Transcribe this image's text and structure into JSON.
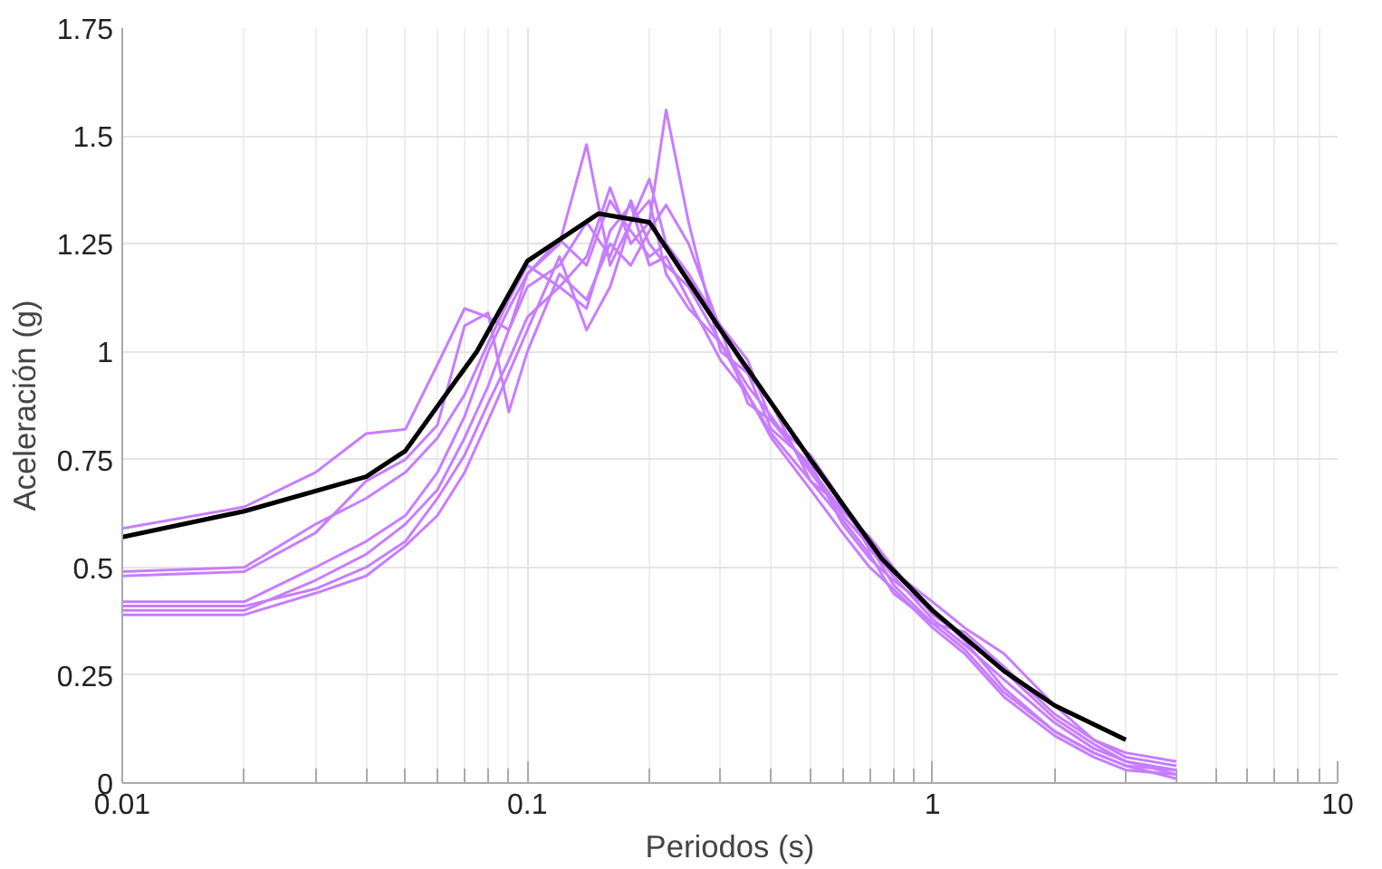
{
  "chart_data": {
    "type": "line",
    "xlabel": "Periodos (s)",
    "ylabel": "Aceleración (g)",
    "log": "x",
    "grid": true,
    "marker": "none",
    "line_style": "solid",
    "xlim": [
      0.01,
      10
    ],
    "xticks": [
      0.01,
      0.1,
      1,
      10
    ],
    "ylim": [
      0,
      1.75
    ],
    "yticks": [
      0,
      0.25,
      0.5,
      0.75,
      1,
      1.25,
      1.5,
      1.75
    ],
    "x": [
      0.01,
      0.02,
      0.03,
      0.04,
      0.05,
      0.06,
      0.07,
      0.08,
      0.09,
      0.1,
      0.12,
      0.14,
      0.16,
      0.18,
      0.2,
      0.22,
      0.25,
      0.3,
      0.35,
      0.4,
      0.5,
      0.6,
      0.7,
      0.8,
      1,
      1.2,
      1.5,
      2,
      2.5,
      3,
      4
    ],
    "series": [
      {
        "color": "#c77dff",
        "values": [
          0.4,
          0.4,
          0.47,
          0.53,
          0.6,
          0.68,
          0.8,
          0.92,
          1.05,
          1.15,
          1.2,
          1.3,
          1.22,
          1.35,
          1.25,
          1.2,
          1.15,
          1.02,
          0.92,
          0.85,
          0.72,
          0.62,
          0.55,
          0.48,
          0.38,
          0.32,
          0.24,
          0.14,
          0.08,
          0.05,
          0.02
        ]
      },
      {
        "color": "#c77dff",
        "values": [
          0.42,
          0.42,
          0.5,
          0.56,
          0.62,
          0.72,
          0.85,
          1.0,
          1.1,
          1.18,
          1.25,
          1.48,
          1.2,
          1.3,
          1.4,
          1.25,
          1.18,
          1.05,
          0.95,
          0.82,
          0.74,
          0.6,
          0.52,
          0.47,
          0.4,
          0.33,
          0.22,
          0.12,
          0.07,
          0.04,
          0.03
        ]
      },
      {
        "color": "#c77dff",
        "values": [
          0.49,
          0.5,
          0.6,
          0.66,
          0.72,
          0.8,
          0.9,
          1.02,
          1.12,
          1.2,
          1.15,
          1.22,
          1.38,
          1.25,
          1.3,
          1.56,
          1.3,
          1.0,
          0.95,
          0.88,
          0.7,
          0.64,
          0.55,
          0.46,
          0.37,
          0.35,
          0.27,
          0.16,
          0.1,
          0.06,
          0.04
        ]
      },
      {
        "color": "#c77dff",
        "values": [
          0.59,
          0.64,
          0.72,
          0.81,
          0.82,
          0.97,
          1.1,
          1.08,
          1.05,
          1.18,
          1.26,
          1.2,
          1.35,
          1.28,
          1.22,
          1.25,
          1.18,
          1.06,
          0.98,
          0.84,
          0.76,
          0.65,
          0.54,
          0.49,
          0.42,
          0.36,
          0.3,
          0.18,
          0.1,
          0.07,
          0.05
        ]
      },
      {
        "color": "#c77dff",
        "values": [
          0.41,
          0.41,
          0.45,
          0.5,
          0.56,
          0.66,
          0.76,
          0.88,
          0.98,
          1.08,
          1.15,
          1.1,
          1.28,
          1.34,
          1.2,
          1.22,
          1.12,
          0.98,
          0.9,
          0.8,
          0.68,
          0.58,
          0.5,
          0.45,
          0.36,
          0.3,
          0.2,
          0.11,
          0.06,
          0.03,
          0.02
        ]
      },
      {
        "color": "#c77dff",
        "values": [
          0.48,
          0.49,
          0.58,
          0.7,
          0.75,
          0.83,
          1.06,
          1.09,
          0.86,
          1.0,
          1.18,
          1.12,
          1.25,
          1.2,
          1.28,
          1.34,
          1.25,
          1.05,
          0.88,
          0.84,
          0.73,
          0.63,
          0.57,
          0.5,
          0.39,
          0.34,
          0.26,
          0.15,
          0.09,
          0.05,
          0.03
        ]
      },
      {
        "color": "#c77dff",
        "values": [
          0.39,
          0.39,
          0.44,
          0.48,
          0.55,
          0.62,
          0.72,
          0.84,
          0.95,
          1.05,
          1.22,
          1.05,
          1.15,
          1.3,
          1.35,
          1.18,
          1.1,
          1.02,
          0.9,
          0.81,
          0.7,
          0.61,
          0.53,
          0.44,
          0.37,
          0.31,
          0.21,
          0.12,
          0.07,
          0.04,
          0.01
        ]
      },
      {
        "color": "#000000",
        "x": [
          0.01,
          0.02,
          0.04,
          0.05,
          0.075,
          0.1,
          0.15,
          0.2,
          0.3,
          0.5,
          0.75,
          1,
          1.5,
          2,
          3
        ],
        "values": [
          0.57,
          0.63,
          0.71,
          0.77,
          1.0,
          1.21,
          1.32,
          1.3,
          1.05,
          0.75,
          0.52,
          0.4,
          0.26,
          0.18,
          0.1
        ]
      }
    ]
  }
}
